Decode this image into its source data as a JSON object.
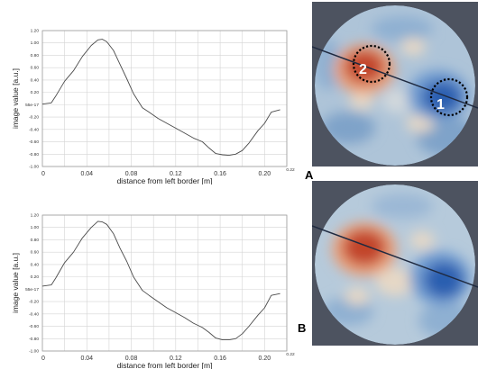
{
  "chart_data": [
    {
      "type": "line",
      "panel": "A",
      "xlabel": "distance from left border [m]",
      "ylabel": "image value [a.u.]",
      "xlim": [
        0,
        0.22
      ],
      "ylim": [
        -1.0,
        1.2
      ],
      "x_ticks": [
        0,
        0.04,
        0.08,
        0.12,
        0.16,
        0.2
      ],
      "x_tick_labels": [
        "0",
        "0.04",
        "0.08",
        "0.12",
        "0.16",
        "0.20"
      ],
      "x_end_label": "0.22",
      "y_ticks": [
        -1.0,
        -0.8,
        -0.6,
        -0.4,
        -0.2,
        0,
        0.2,
        0.4,
        0.6,
        0.8,
        1.0,
        1.2
      ],
      "y_tick_labels": [
        "-1.00",
        "-0.80",
        "-0.60",
        "-0.40",
        "-0.20",
        "55e-17",
        "0.20",
        "0.40",
        "0.60",
        "0.80",
        "1.00",
        "1.20"
      ],
      "grid": true,
      "x": [
        0,
        0.008,
        0.012,
        0.02,
        0.028,
        0.036,
        0.044,
        0.05,
        0.054,
        0.058,
        0.064,
        0.07,
        0.076,
        0.082,
        0.09,
        0.096,
        0.104,
        0.112,
        0.12,
        0.128,
        0.136,
        0.144,
        0.15,
        0.156,
        0.162,
        0.168,
        0.174,
        0.18,
        0.186,
        0.194,
        0.2,
        0.206,
        0.214
      ],
      "y": [
        0.01,
        0.03,
        0.14,
        0.38,
        0.55,
        0.78,
        0.96,
        1.05,
        1.06,
        1.02,
        0.88,
        0.65,
        0.42,
        0.18,
        -0.05,
        -0.12,
        -0.22,
        -0.3,
        -0.38,
        -0.46,
        -0.54,
        -0.6,
        -0.7,
        -0.79,
        -0.81,
        -0.82,
        -0.8,
        -0.74,
        -0.62,
        -0.42,
        -0.3,
        -0.12,
        -0.08
      ]
    },
    {
      "type": "line",
      "panel": "B",
      "xlabel": "distance from left border [m]",
      "ylabel": "image value [a.u.]",
      "xlim": [
        0,
        0.22
      ],
      "ylim": [
        -1.0,
        1.2
      ],
      "x_ticks": [
        0,
        0.04,
        0.08,
        0.12,
        0.16,
        0.2
      ],
      "x_tick_labels": [
        "0",
        "0.04",
        "0.08",
        "0.12",
        "0.16",
        "0.20"
      ],
      "x_end_label": "0.22",
      "y_ticks": [
        -1.0,
        -0.8,
        -0.6,
        -0.4,
        -0.2,
        0,
        0.2,
        0.4,
        0.6,
        0.8,
        1.0,
        1.2
      ],
      "y_tick_labels": [
        "-1.00",
        "-0.80",
        "-0.60",
        "-0.40",
        "-0.20",
        "55e-17",
        "0.20",
        "0.40",
        "0.60",
        "0.80",
        "1.00",
        "1.20"
      ],
      "grid": true,
      "x": [
        0,
        0.008,
        0.012,
        0.02,
        0.028,
        0.036,
        0.044,
        0.05,
        0.054,
        0.058,
        0.064,
        0.07,
        0.076,
        0.082,
        0.09,
        0.096,
        0.104,
        0.112,
        0.12,
        0.128,
        0.136,
        0.144,
        0.15,
        0.156,
        0.162,
        0.168,
        0.174,
        0.18,
        0.186,
        0.194,
        0.2,
        0.206,
        0.214
      ],
      "y": [
        0.05,
        0.07,
        0.18,
        0.43,
        0.6,
        0.83,
        1.0,
        1.1,
        1.09,
        1.05,
        0.9,
        0.66,
        0.45,
        0.2,
        -0.02,
        -0.1,
        -0.2,
        -0.3,
        -0.38,
        -0.46,
        -0.55,
        -0.62,
        -0.7,
        -0.79,
        -0.82,
        -0.82,
        -0.8,
        -0.72,
        -0.6,
        -0.42,
        -0.3,
        -0.1,
        -0.07
      ]
    }
  ],
  "maps": [
    {
      "panel": "A",
      "markers": [
        "1",
        "2"
      ]
    },
    {
      "panel": "B"
    }
  ],
  "colors": {
    "background": "#4d5360",
    "disc_base": "#aec4d8",
    "hot": "#c2442a",
    "cold": "#2a5fb0",
    "curve": "#4a4a4a",
    "grid": "#d4d4d4"
  }
}
